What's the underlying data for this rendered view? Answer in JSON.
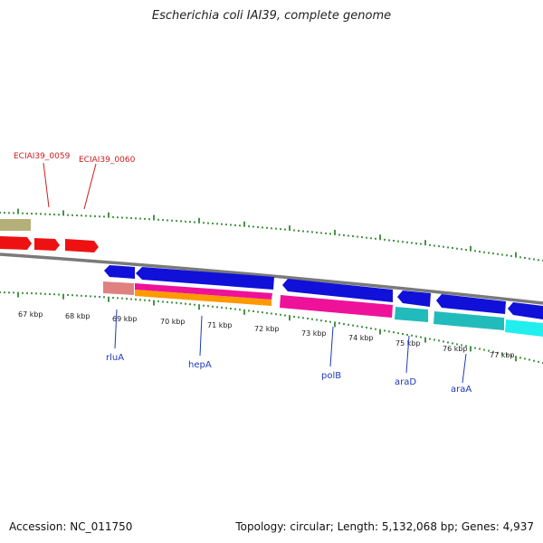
{
  "title": "Escherichia coli IAI39, complete genome",
  "footer": {
    "accession": "Accession: NC_011750",
    "summary": "Topology: circular; Length: 5,132,068 bp; Genes: 4,937"
  },
  "kbp_labels": [
    "67 kbp",
    "68 kbp",
    "69 kbp",
    "70 kbp",
    "71 kbp",
    "72 kbp",
    "73 kbp",
    "74 kbp",
    "75 kbp",
    "76 kbp",
    "77 kbp"
  ],
  "gene_labels": [
    "rluA",
    "hepA",
    "polB",
    "araD",
    "araA"
  ],
  "top_labels": [
    "ECIAI39_0059",
    "ECIAI39_0060"
  ],
  "colors": {
    "backbone": "#7a7a7a",
    "tick": "#1a7a1a",
    "blue": "#1010d8",
    "red": "#ee1111",
    "olive": "#b5b07a",
    "salmon": "#e08080",
    "pink": "#ee1199",
    "orange": "#ff9900",
    "teal": "#22bbbb",
    "cyan": "#22eeee",
    "label_blue": "#1f3ab8",
    "label_red": "#d11a1a"
  }
}
